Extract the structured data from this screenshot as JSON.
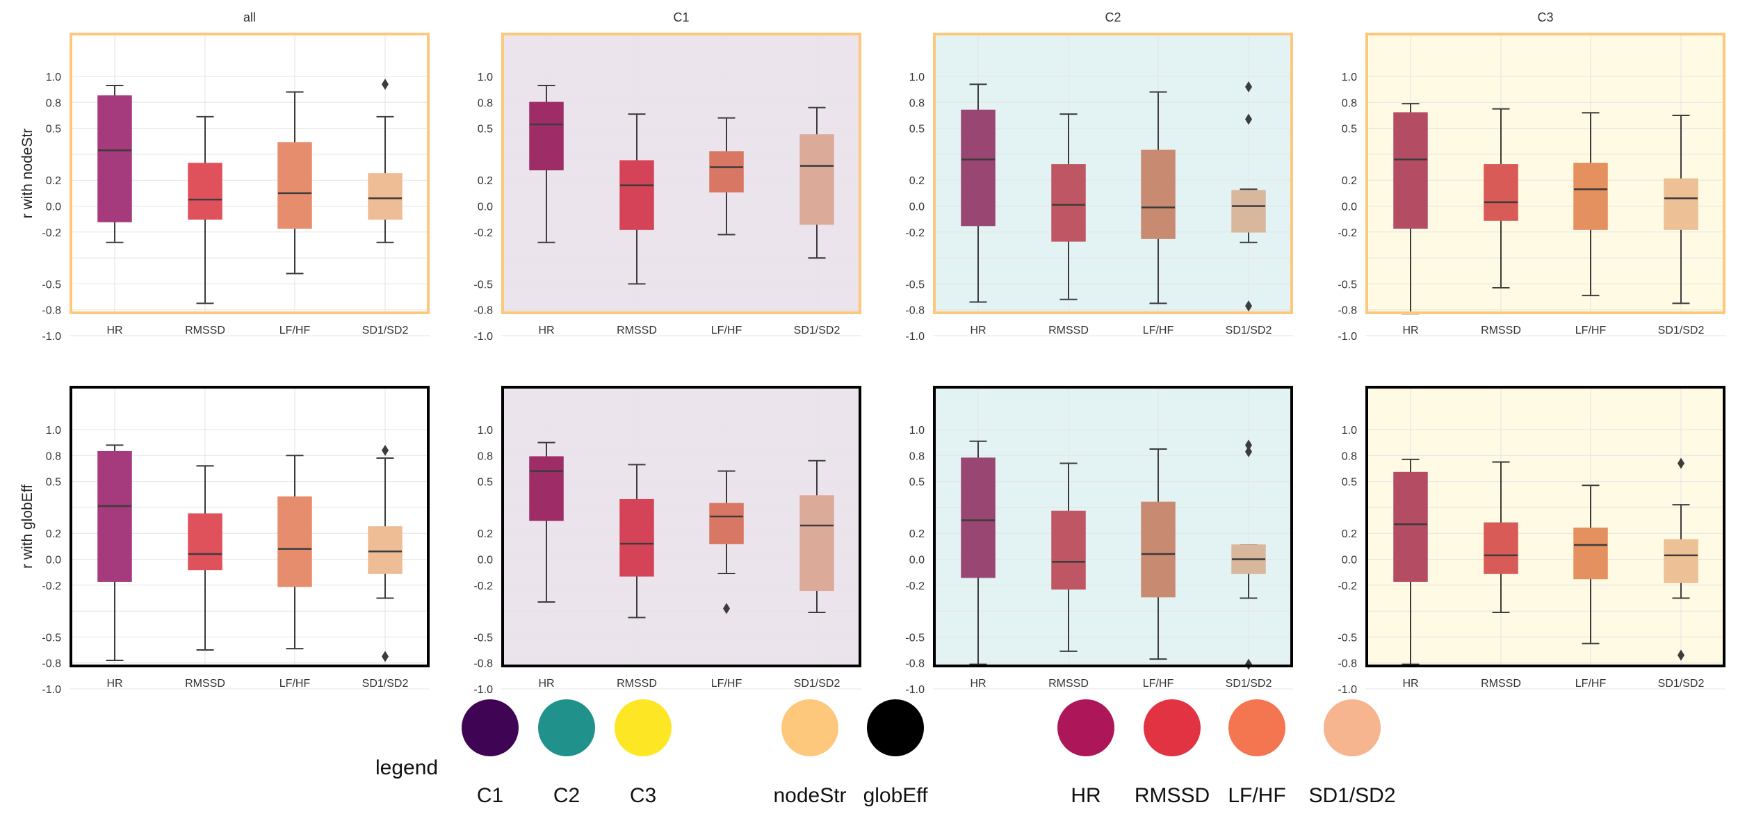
{
  "figure": {
    "row_ylabels": [
      "r with nodeStr",
      "r with globEff"
    ],
    "panel_titles": [
      "all",
      "C1",
      "C2",
      "C3",
      "",
      "",
      "",
      ""
    ]
  },
  "chart_data": {
    "type": "box",
    "categories": [
      "HR",
      "RMSSD",
      "LF/HF",
      "SD1/SD2"
    ],
    "y_tick_labels": [
      "1.0",
      "0.8",
      "0.5",
      "0.2",
      "0.0",
      "-0.2",
      "-0.5",
      "-0.8",
      "-1.0"
    ],
    "ylim": [
      -1.0,
      1.0
    ],
    "grid": true,
    "panels": [
      {
        "title": "all",
        "row": "r with nodeStr",
        "cluster": "all",
        "background": "#ffffff",
        "border": "#fec87c",
        "boxes": [
          {
            "category": "HR",
            "q1": -0.12,
            "median": 0.43,
            "q3": 0.85,
            "whislo": -0.28,
            "whishi": 0.93,
            "fliers": []
          },
          {
            "category": "RMSSD",
            "q1": -0.1,
            "median": 0.05,
            "q3": 0.33,
            "whislo": -0.75,
            "whishi": 0.69,
            "fliers": []
          },
          {
            "category": "LF/HF",
            "q1": -0.17,
            "median": 0.1,
            "q3": 0.49,
            "whislo": -0.52,
            "whishi": 0.88,
            "fliers": []
          },
          {
            "category": "SD1/SD2",
            "q1": -0.1,
            "median": 0.06,
            "q3": 0.25,
            "whislo": -0.28,
            "whishi": 0.69,
            "fliers": [
              0.94
            ]
          }
        ]
      },
      {
        "title": "C1",
        "row": "r with nodeStr",
        "cluster": "C1",
        "background": "#ebe4ec",
        "border": "#fec87c",
        "boxes": [
          {
            "category": "HR",
            "q1": 0.28,
            "median": 0.63,
            "q3": 0.8,
            "whislo": -0.28,
            "whishi": 0.93,
            "fliers": []
          },
          {
            "category": "RMSSD",
            "q1": -0.18,
            "median": 0.16,
            "q3": 0.35,
            "whislo": -0.6,
            "whishi": 0.71,
            "fliers": []
          },
          {
            "category": "LF/HF",
            "q1": 0.11,
            "median": 0.3,
            "q3": 0.42,
            "whislo": -0.22,
            "whishi": 0.68,
            "fliers": []
          },
          {
            "category": "SD1/SD2",
            "q1": -0.14,
            "median": 0.31,
            "q3": 0.55,
            "whislo": -0.4,
            "whishi": 0.76,
            "fliers": []
          }
        ]
      },
      {
        "title": "C2",
        "row": "r with nodeStr",
        "cluster": "C2",
        "background": "#e3f2f2",
        "border": "#fec87c",
        "boxes": [
          {
            "category": "HR",
            "q1": -0.15,
            "median": 0.36,
            "q3": 0.74,
            "whislo": -0.74,
            "whishi": 0.94,
            "fliers": []
          },
          {
            "category": "RMSSD",
            "q1": -0.27,
            "median": 0.01,
            "q3": 0.32,
            "whislo": -0.72,
            "whishi": 0.71,
            "fliers": []
          },
          {
            "category": "LF/HF",
            "q1": -0.25,
            "median": -0.01,
            "q3": 0.43,
            "whislo": -0.75,
            "whishi": 0.88,
            "fliers": []
          },
          {
            "category": "SD1/SD2",
            "q1": -0.2,
            "median": 0.0,
            "q3": 0.12,
            "whislo": -0.28,
            "whishi": 0.13,
            "fliers": [
              0.92,
              0.67,
              -0.77
            ]
          }
        ]
      },
      {
        "title": "C3",
        "row": "r with nodeStr",
        "cluster": "C3",
        "background": "#fefae3",
        "border": "#fec87c",
        "boxes": [
          {
            "category": "HR",
            "q1": -0.17,
            "median": 0.36,
            "q3": 0.72,
            "whislo": -0.83,
            "whishi": 0.79,
            "fliers": []
          },
          {
            "category": "RMSSD",
            "q1": -0.11,
            "median": 0.03,
            "q3": 0.32,
            "whislo": -0.63,
            "whishi": 0.75,
            "fliers": []
          },
          {
            "category": "LF/HF",
            "q1": -0.18,
            "median": 0.13,
            "q3": 0.33,
            "whislo": -0.69,
            "whishi": 0.72,
            "fliers": []
          },
          {
            "category": "SD1/SD2",
            "q1": -0.18,
            "median": 0.06,
            "q3": 0.21,
            "whislo": -0.75,
            "whishi": 0.7,
            "fliers": []
          }
        ]
      },
      {
        "title": "",
        "row": "r with globEff",
        "cluster": "all",
        "background": "#ffffff",
        "border": "#000000",
        "boxes": [
          {
            "category": "HR",
            "q1": -0.17,
            "median": 0.41,
            "q3": 0.83,
            "whislo": -0.78,
            "whishi": 0.88,
            "fliers": []
          },
          {
            "category": "RMSSD",
            "q1": -0.08,
            "median": 0.04,
            "q3": 0.35,
            "whislo": -0.7,
            "whishi": 0.72,
            "fliers": []
          },
          {
            "category": "LF/HF",
            "q1": -0.21,
            "median": 0.08,
            "q3": 0.48,
            "whislo": -0.69,
            "whishi": 0.8,
            "fliers": []
          },
          {
            "category": "SD1/SD2",
            "q1": -0.11,
            "median": 0.06,
            "q3": 0.25,
            "whislo": -0.3,
            "whishi": 0.78,
            "fliers": [
              0.84,
              -0.75
            ]
          }
        ]
      },
      {
        "title": "",
        "row": "r with globEff",
        "cluster": "C1",
        "background": "#ebe4ec",
        "border": "#000000",
        "boxes": [
          {
            "category": "HR",
            "q1": 0.3,
            "median": 0.68,
            "q3": 0.79,
            "whislo": -0.33,
            "whishi": 0.9,
            "fliers": []
          },
          {
            "category": "RMSSD",
            "q1": -0.13,
            "median": 0.12,
            "q3": 0.46,
            "whislo": -0.45,
            "whishi": 0.73,
            "fliers": []
          },
          {
            "category": "LF/HF",
            "q1": 0.12,
            "median": 0.33,
            "q3": 0.43,
            "whislo": -0.11,
            "whishi": 0.68,
            "fliers": [
              -0.38
            ]
          },
          {
            "category": "SD1/SD2",
            "q1": -0.24,
            "median": 0.26,
            "q3": 0.49,
            "whislo": -0.41,
            "whishi": 0.76,
            "fliers": []
          }
        ]
      },
      {
        "title": "",
        "row": "r with globEff",
        "cluster": "C2",
        "background": "#e3f2f2",
        "border": "#000000",
        "boxes": [
          {
            "category": "HR",
            "q1": -0.14,
            "median": 0.3,
            "q3": 0.78,
            "whislo": -0.81,
            "whishi": 0.91,
            "fliers": []
          },
          {
            "category": "RMSSD",
            "q1": -0.23,
            "median": -0.02,
            "q3": 0.37,
            "whislo": -0.71,
            "whishi": 0.74,
            "fliers": []
          },
          {
            "category": "LF/HF",
            "q1": -0.29,
            "median": 0.04,
            "q3": 0.44,
            "whislo": -0.77,
            "whishi": 0.85,
            "fliers": []
          },
          {
            "category": "SD1/SD2",
            "q1": -0.11,
            "median": 0.0,
            "q3": 0.11,
            "whislo": -0.3,
            "whishi": 0.11,
            "fliers": [
              0.88,
              0.83,
              -0.81
            ]
          }
        ]
      },
      {
        "title": "",
        "row": "r with globEff",
        "cluster": "C3",
        "background": "#fefae3",
        "border": "#000000",
        "boxes": [
          {
            "category": "HR",
            "q1": -0.17,
            "median": 0.27,
            "q3": 0.67,
            "whislo": -0.81,
            "whishi": 0.77,
            "fliers": []
          },
          {
            "category": "RMSSD",
            "q1": -0.11,
            "median": 0.03,
            "q3": 0.28,
            "whislo": -0.41,
            "whishi": 0.75,
            "fliers": []
          },
          {
            "category": "LF/HF",
            "q1": -0.15,
            "median": 0.11,
            "q3": 0.24,
            "whislo": -0.65,
            "whishi": 0.57,
            "fliers": []
          },
          {
            "category": "SD1/SD2",
            "q1": -0.18,
            "median": 0.03,
            "q3": 0.15,
            "whislo": -0.3,
            "whishi": 0.42,
            "fliers": [
              0.74,
              -0.74
            ]
          }
        ]
      }
    ]
  },
  "styles": {
    "box_colors": {
      "all": [
        "#a53a7c",
        "#df525c",
        "#e58d6c",
        "#eebc95"
      ],
      "C1": [
        "#9e2d67",
        "#d44358",
        "#d87763",
        "#dcaa98"
      ],
      "C2": [
        "#994673",
        "#bf5663",
        "#c98a72",
        "#d8b79c"
      ],
      "C3": [
        "#b44d63",
        "#d85b57",
        "#e5905f",
        "#edc095"
      ]
    },
    "line_color": "#3c3c3c",
    "grid_color": "#e4e4e4"
  },
  "legend": {
    "title": "legend",
    "items": [
      {
        "label": "C1",
        "color": "#3f0554"
      },
      {
        "label": "C2",
        "color": "#21918c"
      },
      {
        "label": "C3",
        "color": "#fde725"
      },
      {
        "label": "nodeStr",
        "color": "#fec87c"
      },
      {
        "label": "globEff",
        "color": "#000000"
      },
      {
        "label": "HR",
        "color": "#ad1759"
      },
      {
        "label": "RMSSD",
        "color": "#e13342"
      },
      {
        "label": "LF/HF",
        "color": "#f37651"
      },
      {
        "label": "SD1/SD2",
        "color": "#f6b48f"
      }
    ]
  }
}
